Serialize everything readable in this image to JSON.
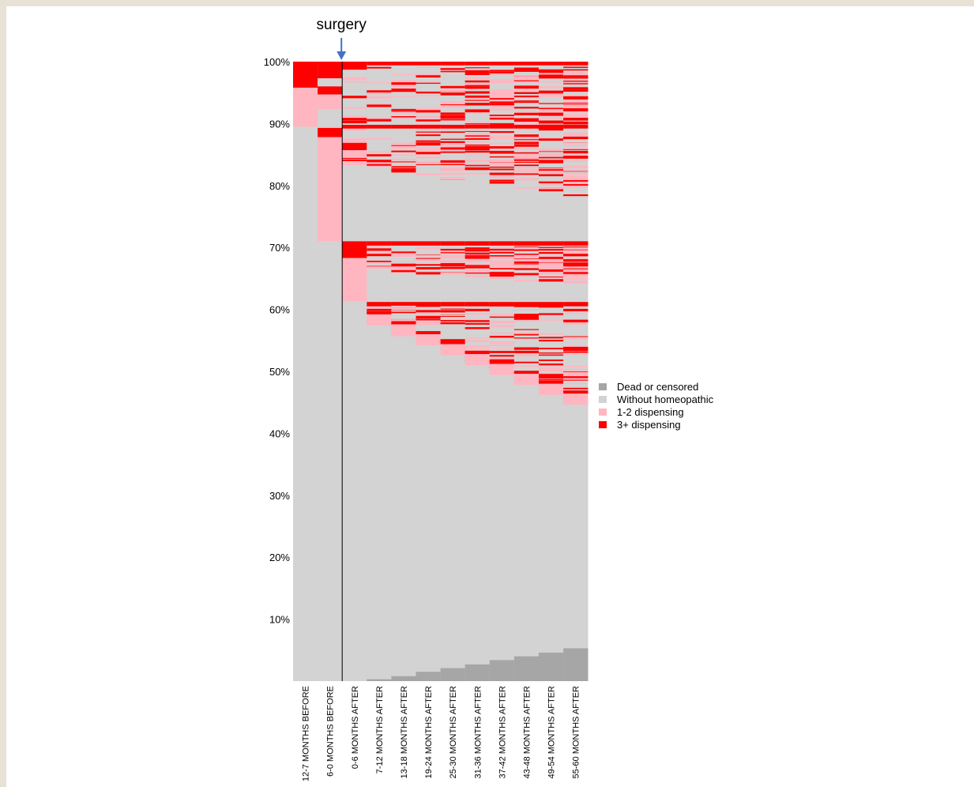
{
  "chart_data": {
    "type": "alluvial-stacked-bar",
    "title": "",
    "annotation": "surgery",
    "xlabel": "",
    "ylabel": "",
    "ylim": [
      0,
      100
    ],
    "y_ticks": [
      "10%",
      "20%",
      "30%",
      "40%",
      "50%",
      "60%",
      "70%",
      "80%",
      "90%",
      "100%"
    ],
    "y_tick_values": [
      10,
      20,
      30,
      40,
      50,
      60,
      70,
      80,
      90,
      100
    ],
    "categories": [
      "12-7 MONTHS BEFORE",
      "6-0 MONTHS BEFORE",
      "0-6 MONTHS AFTER",
      "7-12 MONTHS AFTER",
      "13-18 MONTHS AFTER",
      "19-24 MONTHS AFTER",
      "25-30 MONTHS AFTER",
      "31-36 MONTHS AFTER",
      "37-42 MONTHS AFTER",
      "43-48 MONTHS AFTER",
      "49-54 MONTHS AFTER",
      "55-60 MONTHS AFTER"
    ],
    "legend": [
      {
        "label": "Dead or censored",
        "color": "#a6a6a6"
      },
      {
        "label": "Without homeopathic",
        "color": "#d3d3d3"
      },
      {
        "label": "1-2 dispensing",
        "color": "#ffb6c1"
      },
      {
        "label": "3+ dispensing",
        "color": "#ff0000"
      }
    ],
    "legend_position": "right",
    "colors": {
      "dead": "#a6a6a6",
      "without": "#d3d3d3",
      "low": "#ffb6c1",
      "high": "#ff0000",
      "arrow": "#4472c4"
    },
    "series": [
      {
        "name": "Dead or censored",
        "values": [
          0,
          0,
          0,
          0.3,
          0.8,
          1.5,
          2.1,
          2.7,
          3.4,
          4.0,
          4.6,
          5.3
        ]
      },
      {
        "name": "Without homeopathic",
        "values": [
          89.5,
          71.0,
          61.2,
          57.3,
          54.5,
          52.0,
          49.8,
          48.0,
          46.5,
          45.0,
          44.0,
          43.0
        ]
      },
      {
        "name": "1-2 dispensing",
        "values": [
          6.3,
          18.5,
          24.5,
          25.5,
          26.0,
          26.5,
          27.0,
          27.3,
          27.5,
          27.8,
          28.0,
          28.3
        ]
      },
      {
        "name": "3+ dispensing",
        "values": [
          4.2,
          10.5,
          14.3,
          16.9,
          18.7,
          20.0,
          21.1,
          22.0,
          22.6,
          23.2,
          23.4,
          23.4
        ]
      }
    ]
  }
}
